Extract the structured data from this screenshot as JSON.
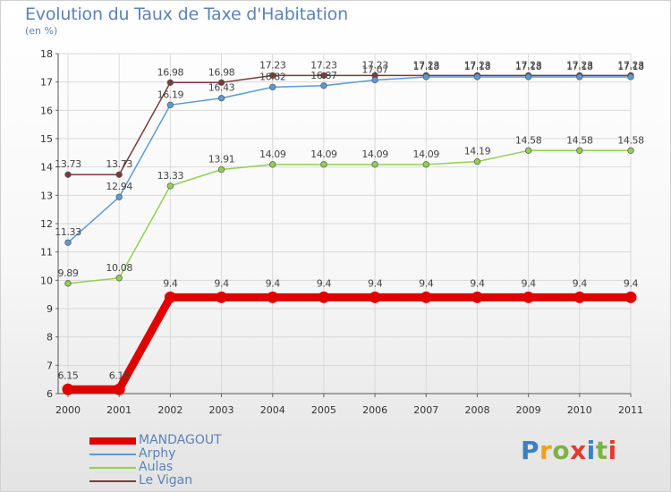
{
  "title": "Evolution du Taux de Taxe d'Habitation",
  "subtitle": "(en %)",
  "brand": {
    "text": "Proxiti",
    "letters": [
      "P",
      "r",
      "o",
      "x",
      "i",
      "t",
      "i"
    ],
    "colors": [
      "#3d7fc4",
      "#f2a01c",
      "#7cb342",
      "#e23b2c",
      "#3d7fc4",
      "#7cb342",
      "#e23b2c"
    ]
  },
  "chart_data": {
    "type": "line",
    "title": "Evolution du Taux de Taxe d'Habitation",
    "ylabel": "(en %)",
    "xlabel": "",
    "x": [
      "2000",
      "2001",
      "2002",
      "2003",
      "2004",
      "2005",
      "2006",
      "2007",
      "2008",
      "2009",
      "2010",
      "2011"
    ],
    "ylim": [
      6,
      18
    ],
    "yticks": [
      "6",
      "7",
      "8",
      "9",
      "10",
      "11",
      "12",
      "13",
      "14",
      "15",
      "16",
      "17",
      "18"
    ],
    "grid": true,
    "legend": "bottom-left",
    "series": [
      {
        "name": "MANDAGOUT",
        "color": "#e00000",
        "values": [
          6.15,
          6.15,
          9.4,
          9.4,
          9.4,
          9.4,
          9.4,
          9.4,
          9.4,
          9.4,
          9.4,
          9.4
        ],
        "labels": [
          "6.15",
          "6.15",
          "9.4",
          "9.4",
          "9.4",
          "9.4",
          "9.4",
          "9.4",
          "9.4",
          "9.4",
          "9.4",
          "9.4"
        ]
      },
      {
        "name": "Arphy",
        "color": "#5b9bd5",
        "values": [
          11.33,
          12.94,
          16.19,
          16.43,
          16.82,
          16.87,
          17.07,
          17.18,
          17.18,
          17.18,
          17.18,
          17.18
        ],
        "labels": [
          "11.33",
          "12.94",
          "16.19",
          "16.43",
          "16.82",
          "16.87",
          "17.07",
          "17.18",
          "17.18",
          "17.18",
          "17.18",
          "17.18"
        ]
      },
      {
        "name": "Aulas",
        "color": "#92d050",
        "values": [
          9.89,
          10.08,
          13.33,
          13.91,
          14.09,
          14.09,
          14.09,
          14.09,
          14.19,
          14.58,
          14.58,
          14.58
        ],
        "labels": [
          "9.89",
          "10.08",
          "13.33",
          "13.91",
          "14.09",
          "14.09",
          "14.09",
          "14.09",
          "14.19",
          "14.58",
          "14.58",
          "14.58"
        ]
      },
      {
        "name": "Le Vigan",
        "color": "#7b3a3a",
        "values": [
          13.73,
          13.73,
          16.98,
          16.98,
          17.23,
          17.23,
          17.23,
          17.23,
          17.23,
          17.23,
          17.23,
          17.23
        ],
        "labels": [
          "13.73",
          "13.73",
          "16.98",
          "16.98",
          "17.23",
          "17.23",
          "17.23",
          "17.23",
          "17.23",
          "17.23",
          "17.23",
          "17.23"
        ]
      }
    ]
  }
}
